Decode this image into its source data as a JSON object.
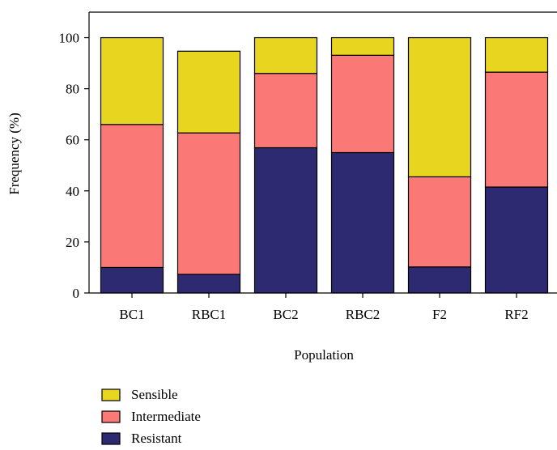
{
  "chart_data": {
    "type": "bar",
    "stacked": true,
    "categories": [
      "BC1",
      "RBC1",
      "BC2",
      "RBC2",
      "F2",
      "RF2"
    ],
    "series": [
      {
        "name": "Resistant",
        "color": "#2e2a72",
        "values": [
          10.0,
          7.3,
          56.9,
          55.0,
          10.2,
          41.5
        ]
      },
      {
        "name": "Intermediate",
        "color": "#fa7876",
        "values": [
          56.0,
          55.4,
          29.1,
          38.1,
          35.3,
          45.0
        ]
      },
      {
        "name": "Sensible",
        "color": "#e8d520",
        "values": [
          34.0,
          32.0,
          14.0,
          6.9,
          54.5,
          13.5
        ]
      }
    ],
    "legend_order": [
      "Sensible",
      "Intermediate",
      "Resistant"
    ],
    "xlabel": "Population",
    "ylabel": "Frequency (%)",
    "ylim": [
      0,
      110
    ],
    "yticks": [
      0,
      20,
      40,
      60,
      80,
      100
    ],
    "grid": false,
    "legend_position": "bottom-left"
  }
}
